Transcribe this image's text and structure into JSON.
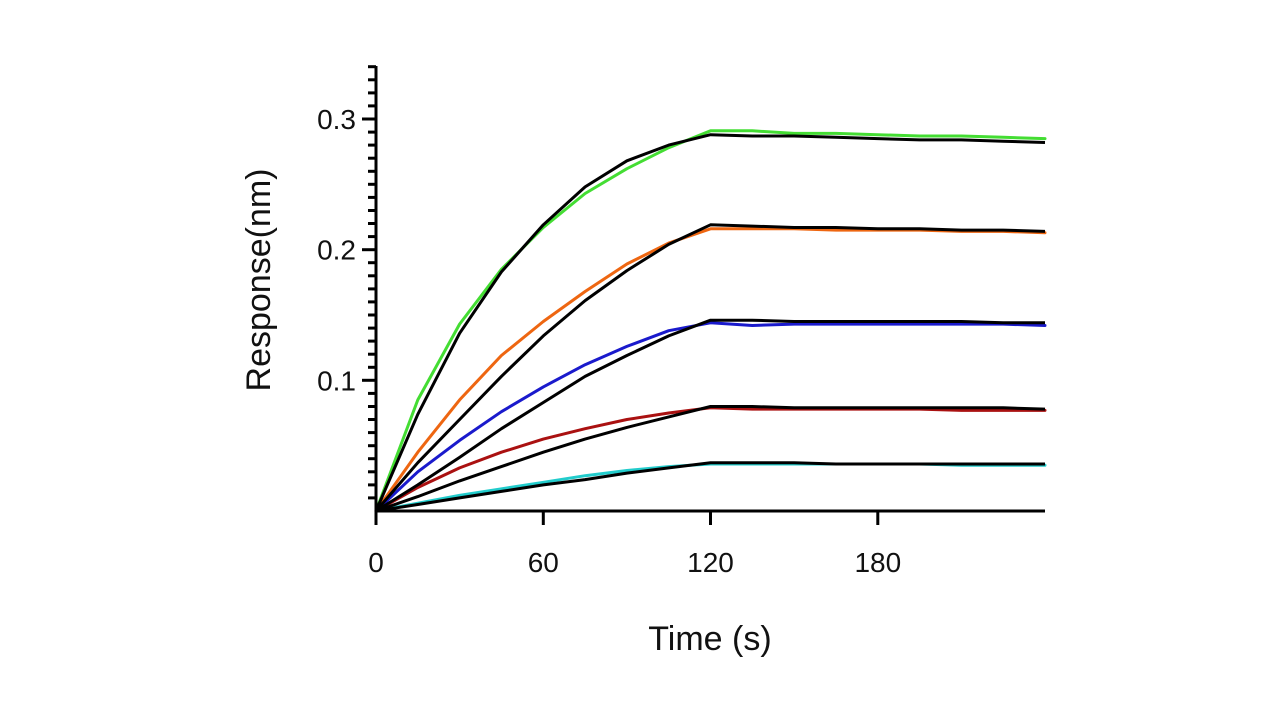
{
  "chart_data": {
    "type": "line",
    "title": "",
    "xlabel": "Time (s)",
    "ylabel": "Response(nm)",
    "xlim": [
      0,
      240
    ],
    "ylim": [
      0,
      0.34
    ],
    "x_ticks": [
      0,
      60,
      120,
      180
    ],
    "x_tick_labels": [
      "0",
      "60",
      "120",
      "180"
    ],
    "y_ticks": [
      0.1,
      0.2,
      0.3
    ],
    "y_tick_labels": [
      "0.1",
      "0.2",
      "0.3"
    ],
    "grid": false,
    "legend": "none",
    "x": [
      0,
      15,
      30,
      45,
      60,
      75,
      90,
      105,
      120,
      135,
      150,
      165,
      180,
      195,
      210,
      225,
      240
    ],
    "series": [
      {
        "color": "#44dd33",
        "kind": "data",
        "values": [
          0,
          0.085,
          0.143,
          0.185,
          0.217,
          0.243,
          0.262,
          0.278,
          0.291,
          0.291,
          0.289,
          0.289,
          0.288,
          0.287,
          0.287,
          0.286,
          0.285
        ]
      },
      {
        "color": "#ee6611",
        "kind": "data",
        "values": [
          0,
          0.045,
          0.085,
          0.119,
          0.145,
          0.168,
          0.189,
          0.205,
          0.216,
          0.216,
          0.216,
          0.215,
          0.215,
          0.215,
          0.214,
          0.214,
          0.213
        ]
      },
      {
        "color": "#1a1acc",
        "kind": "data",
        "values": [
          0,
          0.03,
          0.054,
          0.076,
          0.095,
          0.112,
          0.126,
          0.138,
          0.144,
          0.142,
          0.143,
          0.143,
          0.143,
          0.143,
          0.143,
          0.143,
          0.142
        ]
      },
      {
        "color": "#aa1111",
        "kind": "data",
        "values": [
          0,
          0.018,
          0.033,
          0.045,
          0.055,
          0.063,
          0.07,
          0.075,
          0.079,
          0.078,
          0.078,
          0.078,
          0.078,
          0.078,
          0.077,
          0.077,
          0.077
        ]
      },
      {
        "color": "#22cccc",
        "kind": "data",
        "values": [
          0,
          0.006,
          0.012,
          0.017,
          0.022,
          0.027,
          0.031,
          0.034,
          0.036,
          0.036,
          0.036,
          0.036,
          0.036,
          0.036,
          0.035,
          0.035,
          0.035
        ]
      },
      {
        "color": "#000000",
        "kind": "fit",
        "values": [
          0,
          0.074,
          0.136,
          0.183,
          0.219,
          0.248,
          0.268,
          0.28,
          0.288,
          0.287,
          0.287,
          0.286,
          0.285,
          0.284,
          0.284,
          0.283,
          0.282
        ]
      },
      {
        "color": "#000000",
        "kind": "fit",
        "values": [
          0,
          0.037,
          0.07,
          0.103,
          0.134,
          0.161,
          0.184,
          0.204,
          0.219,
          0.218,
          0.217,
          0.217,
          0.216,
          0.216,
          0.215,
          0.215,
          0.214
        ]
      },
      {
        "color": "#000000",
        "kind": "fit",
        "values": [
          0,
          0.02,
          0.041,
          0.063,
          0.083,
          0.103,
          0.119,
          0.134,
          0.146,
          0.146,
          0.145,
          0.145,
          0.145,
          0.145,
          0.145,
          0.144,
          0.144
        ]
      },
      {
        "color": "#000000",
        "kind": "fit",
        "values": [
          0,
          0.011,
          0.023,
          0.034,
          0.045,
          0.055,
          0.064,
          0.072,
          0.08,
          0.08,
          0.079,
          0.079,
          0.079,
          0.079,
          0.079,
          0.079,
          0.078
        ]
      },
      {
        "color": "#000000",
        "kind": "fit",
        "values": [
          0,
          0.005,
          0.01,
          0.015,
          0.02,
          0.024,
          0.029,
          0.033,
          0.037,
          0.037,
          0.037,
          0.036,
          0.036,
          0.036,
          0.036,
          0.036,
          0.036
        ]
      }
    ]
  }
}
